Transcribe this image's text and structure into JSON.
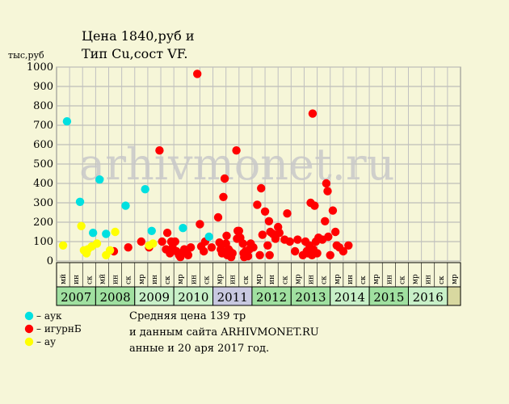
{
  "chart_data": {
    "type": "scatter",
    "title_line1": "Цена 1840,руб и",
    "title_line2": "Тип Cu,сост VF.",
    "ylabel": "тыс,руб",
    "ylim": [
      0,
      1000
    ],
    "yticks": [
      "0",
      "100",
      "200",
      "300",
      "400",
      "500",
      "600",
      "700",
      "800",
      "900",
      "1000"
    ],
    "quarter_labels": [
      "мй",
      "ин",
      "ск",
      "мй",
      "ин",
      "ск",
      "мр",
      "ин",
      "ск",
      "мр",
      "ин",
      "ск",
      "мр",
      "ин",
      "ск",
      "мр",
      "ин",
      "ск",
      "мр",
      "ин",
      "ск",
      "мр",
      "ин",
      "ск",
      "мр",
      "ин",
      "ск",
      "мр",
      "ин",
      "ск",
      "мр"
    ],
    "years": [
      "2007",
      "2008",
      "2009",
      "2010",
      "2011",
      "2012",
      "2013",
      "2014",
      "2015",
      "2016"
    ],
    "year_colors": [
      "#a0e0a0",
      "#a0e0a0",
      "#c8f0c8",
      "#c8f0c8",
      "#c8c8e0",
      "#a0e0a0",
      "#a0e0a0",
      "#c8f0c8",
      "#a0e0a0",
      "#c8f0c8"
    ],
    "watermark": "arhivmonet.ru",
    "series": [
      {
        "name": "– аук",
        "color": "#00e0e0",
        "points": [
          [
            0.3,
            720
          ],
          [
            1.3,
            305
          ],
          [
            2.3,
            145
          ],
          [
            2.8,
            420
          ],
          [
            3.3,
            140
          ],
          [
            4.8,
            285
          ],
          [
            6.3,
            370
          ],
          [
            6.8,
            155
          ],
          [
            9.2,
            170
          ],
          [
            11.2,
            125
          ]
        ]
      },
      {
        "name": "– игурнБ",
        "color": "#ff0000",
        "points": [
          [
            3.9,
            50
          ],
          [
            5.0,
            70
          ],
          [
            6.0,
            100
          ],
          [
            6.6,
            70
          ],
          [
            7.4,
            570
          ],
          [
            7.6,
            100
          ],
          [
            7.9,
            60
          ],
          [
            8.0,
            145
          ],
          [
            8.2,
            40
          ],
          [
            8.3,
            100
          ],
          [
            8.4,
            70
          ],
          [
            8.6,
            100
          ],
          [
            8.7,
            50
          ],
          [
            8.9,
            30
          ],
          [
            9.0,
            20
          ],
          [
            9.1,
            40
          ],
          [
            9.3,
            60
          ],
          [
            9.5,
            50
          ],
          [
            9.6,
            30
          ],
          [
            9.8,
            70
          ],
          [
            10.3,
            965
          ],
          [
            10.5,
            190
          ],
          [
            10.6,
            75
          ],
          [
            10.8,
            50
          ],
          [
            10.9,
            100
          ],
          [
            11.4,
            70
          ],
          [
            11.9,
            225
          ],
          [
            12.0,
            95
          ],
          [
            12.1,
            60
          ],
          [
            12.2,
            40
          ],
          [
            12.3,
            330
          ],
          [
            12.4,
            425
          ],
          [
            12.5,
            90
          ],
          [
            12.55,
            130
          ],
          [
            12.6,
            30
          ],
          [
            12.7,
            60
          ],
          [
            12.8,
            50
          ],
          [
            12.9,
            20
          ],
          [
            13.0,
            40
          ],
          [
            13.3,
            570
          ],
          [
            13.35,
            115
          ],
          [
            13.4,
            155
          ],
          [
            13.5,
            155
          ],
          [
            13.6,
            120
          ],
          [
            13.8,
            90
          ],
          [
            13.85,
            40
          ],
          [
            13.9,
            20
          ],
          [
            14.0,
            50
          ],
          [
            14.1,
            40
          ],
          [
            14.2,
            25
          ],
          [
            14.3,
            60
          ],
          [
            14.4,
            90
          ],
          [
            14.6,
            70
          ],
          [
            14.9,
            290
          ],
          [
            15.1,
            30
          ],
          [
            15.2,
            375
          ],
          [
            15.3,
            135
          ],
          [
            15.5,
            255
          ],
          [
            15.7,
            80
          ],
          [
            15.8,
            205
          ],
          [
            15.85,
            30
          ],
          [
            15.9,
            150
          ],
          [
            16.1,
            140
          ],
          [
            16.3,
            115
          ],
          [
            16.5,
            175
          ],
          [
            16.6,
            145
          ],
          [
            17.0,
            110
          ],
          [
            17.2,
            245
          ],
          [
            17.4,
            100
          ],
          [
            17.8,
            50
          ],
          [
            18.0,
            110
          ],
          [
            18.4,
            30
          ],
          [
            18.6,
            100
          ],
          [
            18.7,
            50
          ],
          [
            18.8,
            40
          ],
          [
            18.9,
            80
          ],
          [
            19.0,
            300
          ],
          [
            19.1,
            30
          ],
          [
            19.15,
            760
          ],
          [
            19.2,
            60
          ],
          [
            19.3,
            285
          ],
          [
            19.4,
            100
          ],
          [
            19.5,
            40
          ],
          [
            19.6,
            120
          ],
          [
            19.9,
            110
          ],
          [
            20.1,
            205
          ],
          [
            20.2,
            400
          ],
          [
            20.3,
            360
          ],
          [
            20.35,
            125
          ],
          [
            20.5,
            30
          ],
          [
            20.7,
            260
          ],
          [
            20.9,
            150
          ],
          [
            21.0,
            80
          ],
          [
            21.2,
            70
          ],
          [
            21.5,
            50
          ],
          [
            21.9,
            80
          ]
        ]
      },
      {
        "name": "– ау",
        "color": "#ffff00",
        "points": [
          [
            0.0,
            80
          ],
          [
            1.4,
            180
          ],
          [
            1.6,
            55
          ],
          [
            1.8,
            40
          ],
          [
            1.9,
            60
          ],
          [
            2.2,
            75
          ],
          [
            2.6,
            90
          ],
          [
            3.3,
            30
          ],
          [
            3.6,
            55
          ],
          [
            4.0,
            150
          ],
          [
            6.6,
            80
          ],
          [
            6.9,
            90
          ]
        ]
      }
    ],
    "info_lines": [
      "Средняя цена 139 тр",
      "и данным сайта ARHIVMONET.RU",
      "анные и 20 аря 2017 год."
    ]
  }
}
